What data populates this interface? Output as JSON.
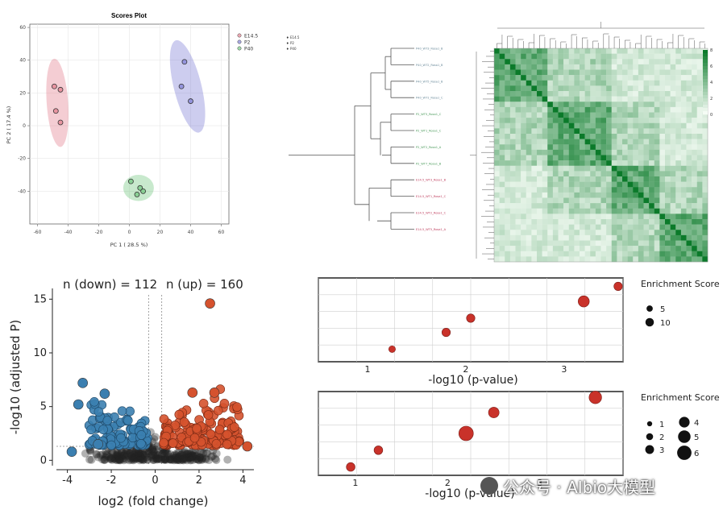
{
  "colors": {
    "E14.5": "#e07080",
    "P2": "#7070d0",
    "P40": "#60c070",
    "up": "#d5522e",
    "down": "#3b7fb0",
    "enrich": "#c9322a",
    "heat": "#0b7a2a"
  },
  "chart_data": [
    {
      "type": "scatter",
      "title": "Scores Plot",
      "xlabel": "PC 1 ( 28.5 %)",
      "ylabel": "PC 2 ( 17.4 %)",
      "xlim": [
        -65,
        65
      ],
      "ylim": [
        -60,
        62
      ],
      "xticks": [
        -60,
        -40,
        -20,
        0,
        20,
        40,
        60
      ],
      "yticks": [
        -40,
        -20,
        0,
        20,
        40,
        60
      ],
      "legend_position": "top-right",
      "series": [
        {
          "name": "E14.5",
          "points": [
            [
              -49,
              24
            ],
            [
              -45,
              22
            ],
            [
              -48,
              9
            ],
            [
              -45,
              2
            ]
          ]
        },
        {
          "name": "P2",
          "points": [
            [
              36,
              39
            ],
            [
              34,
              24
            ],
            [
              40,
              15
            ]
          ]
        },
        {
          "name": "P40",
          "points": [
            [
              1,
              -34
            ],
            [
              7,
              -38
            ],
            [
              9,
              -40
            ],
            [
              5,
              -42
            ]
          ]
        }
      ]
    },
    {
      "type": "heatmap",
      "legend_position": "right",
      "series_names": [
        "E14.5",
        "P2",
        "P40"
      ],
      "row_labels": [
        "P40_WT3_Rosa1_B",
        "P40_WT2_Rosa1_B",
        "P40_WT5_Rosa1_B",
        "P40_WT1_Rosa1_C",
        "P2_WT5_Rosa1_C",
        "P2_WT1_Rosa1_C",
        "P2_WT2_Rosa1_A",
        "P2_WT7_Rosa1_B",
        "E14.5_WT3_Rosa1_B",
        "E14.5_WT1_Rosa1_C",
        "E14.5_WT2_Rosa1_C",
        "E14.5_WT5_Rosa1_A"
      ],
      "colorbar_ticks": [
        0,
        2,
        4,
        6,
        8
      ]
    },
    {
      "type": "scatter",
      "xlabel": "log2 (fold change)",
      "ylabel": "-log10 (adjusted P)",
      "xlim": [
        -4.5,
        4.5
      ],
      "ylim": [
        -0.5,
        16
      ],
      "xticks": [
        -4,
        -2,
        0,
        2,
        4
      ],
      "yticks": [
        0,
        5,
        10,
        15
      ],
      "annotations": {
        "down": "n (down) = 112",
        "up": "n (up) = 160"
      },
      "thresholds": {
        "fc": [
          -0.3,
          0.3
        ],
        "p": 1.3
      },
      "highlight": [
        [
          2.5,
          14.6
        ],
        [
          -3.3,
          7.2
        ],
        [
          -2.3,
          6.2
        ],
        [
          -3.5,
          5.2
        ],
        [
          1.7,
          6.3
        ],
        [
          2.7,
          6.3
        ],
        [
          -2.6,
          1.5
        ],
        [
          -3.8,
          0.8
        ],
        [
          4.2,
          1.3
        ]
      ]
    },
    {
      "type": "scatter",
      "xlabel": "-log10 (p-value)",
      "xlim": [
        0.5,
        3.6
      ],
      "xticks": [
        1,
        2,
        3
      ],
      "legend_title": "Enrichment Score",
      "size_legend": [
        5,
        10
      ],
      "points": [
        [
          1.25,
          1.5,
          3
        ],
        [
          1.8,
          3.5,
          5
        ],
        [
          2.05,
          5.2,
          5
        ],
        [
          3.2,
          7.2,
          8
        ],
        [
          3.55,
          9.0,
          5
        ]
      ]
    },
    {
      "type": "scatter",
      "xlabel": "-log10 (p-value)",
      "xlim": [
        0.6,
        3.9
      ],
      "xticks": [
        1,
        2,
        3
      ],
      "legend_title": "Enrichment Score",
      "size_legend": [
        1,
        2,
        3,
        4,
        5,
        6
      ],
      "points": [
        [
          0.95,
          1.0,
          2
        ],
        [
          1.25,
          3.0,
          2
        ],
        [
          2.2,
          5.0,
          5
        ],
        [
          2.5,
          7.5,
          3
        ],
        [
          3.6,
          9.3,
          4
        ]
      ]
    }
  ],
  "watermark": "公众号 · AIbio大模型"
}
